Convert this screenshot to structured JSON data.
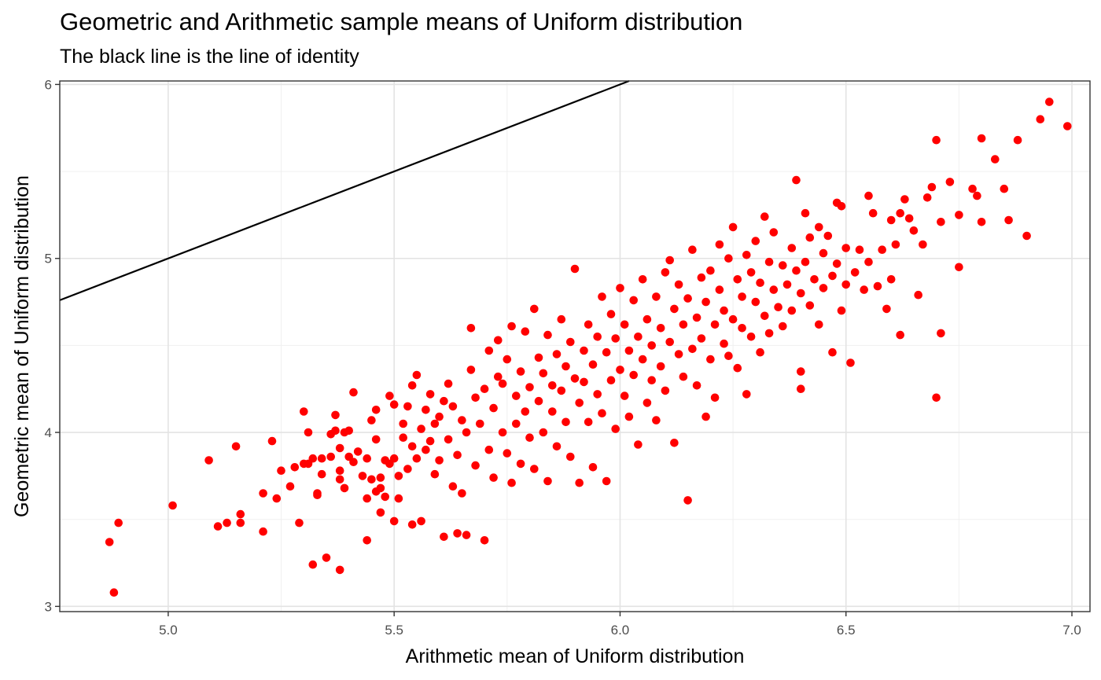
{
  "chart_data": {
    "type": "scatter",
    "title": "Geometric and Arithmetic sample means of Uniform distribution",
    "subtitle": "The black line is the line of identity",
    "xlabel": "Arithmetic mean of Uniform distribution",
    "ylabel": "Geometric mean of Uniform distribution",
    "xlim": [
      4.76,
      7.04
    ],
    "ylim": [
      2.97,
      6.02
    ],
    "x_ticks": [
      5.0,
      5.5,
      6.0,
      6.5,
      7.0
    ],
    "x_tick_labels": [
      "5.0",
      "5.5",
      "6.0",
      "6.5",
      "7.0"
    ],
    "y_ticks": [
      3,
      4,
      5,
      6
    ],
    "y_tick_labels": [
      "3",
      "4",
      "5",
      "6"
    ],
    "grid": true,
    "point_color": "#ff0000",
    "reference_line": {
      "type": "identity",
      "slope": 1,
      "intercept": 0,
      "color": "#000000"
    },
    "points": [
      [
        4.87,
        3.37
      ],
      [
        4.88,
        3.08
      ],
      [
        4.89,
        3.48
      ],
      [
        5.01,
        3.58
      ],
      [
        5.09,
        3.84
      ],
      [
        5.11,
        3.46
      ],
      [
        5.13,
        3.48
      ],
      [
        5.15,
        3.92
      ],
      [
        5.16,
        3.53
      ],
      [
        5.16,
        3.48
      ],
      [
        5.21,
        3.65
      ],
      [
        5.21,
        3.43
      ],
      [
        5.23,
        3.95
      ],
      [
        5.24,
        3.62
      ],
      [
        5.25,
        3.78
      ],
      [
        5.27,
        3.69
      ],
      [
        5.28,
        3.8
      ],
      [
        5.29,
        3.48
      ],
      [
        5.3,
        3.82
      ],
      [
        5.3,
        4.12
      ],
      [
        5.31,
        3.82
      ],
      [
        5.31,
        4.0
      ],
      [
        5.32,
        3.85
      ],
      [
        5.32,
        3.24
      ],
      [
        5.33,
        3.65
      ],
      [
        5.33,
        3.64
      ],
      [
        5.34,
        3.76
      ],
      [
        5.34,
        3.85
      ],
      [
        5.35,
        3.28
      ],
      [
        5.36,
        3.86
      ],
      [
        5.36,
        3.99
      ],
      [
        5.37,
        4.01
      ],
      [
        5.37,
        4.1
      ],
      [
        5.38,
        3.78
      ],
      [
        5.38,
        3.73
      ],
      [
        5.38,
        3.91
      ],
      [
        5.38,
        3.21
      ],
      [
        5.39,
        3.68
      ],
      [
        5.39,
        4.0
      ],
      [
        5.4,
        3.86
      ],
      [
        5.4,
        4.01
      ],
      [
        5.41,
        4.23
      ],
      [
        5.41,
        3.83
      ],
      [
        5.42,
        3.89
      ],
      [
        5.43,
        3.75
      ],
      [
        5.44,
        3.85
      ],
      [
        5.44,
        3.62
      ],
      [
        5.44,
        3.38
      ],
      [
        5.45,
        3.73
      ],
      [
        5.45,
        4.07
      ],
      [
        5.46,
        3.66
      ],
      [
        5.46,
        3.96
      ],
      [
        5.46,
        4.13
      ],
      [
        5.47,
        3.54
      ],
      [
        5.47,
        3.74
      ],
      [
        5.47,
        3.68
      ],
      [
        5.48,
        3.84
      ],
      [
        5.48,
        3.63
      ],
      [
        5.49,
        3.82
      ],
      [
        5.49,
        4.21
      ],
      [
        5.5,
        3.49
      ],
      [
        5.5,
        3.85
      ],
      [
        5.5,
        4.16
      ],
      [
        5.51,
        3.75
      ],
      [
        5.51,
        3.62
      ],
      [
        5.52,
        3.97
      ],
      [
        5.52,
        4.05
      ],
      [
        5.53,
        4.15
      ],
      [
        5.53,
        3.79
      ],
      [
        5.54,
        3.92
      ],
      [
        5.54,
        4.27
      ],
      [
        5.54,
        3.47
      ],
      [
        5.55,
        4.33
      ],
      [
        5.55,
        3.85
      ],
      [
        5.56,
        3.49
      ],
      [
        5.56,
        4.02
      ],
      [
        5.57,
        3.9
      ],
      [
        5.57,
        4.13
      ],
      [
        5.58,
        3.95
      ],
      [
        5.58,
        4.22
      ],
      [
        5.59,
        3.76
      ],
      [
        5.59,
        4.05
      ],
      [
        5.6,
        3.84
      ],
      [
        5.6,
        4.09
      ],
      [
        5.61,
        3.4
      ],
      [
        5.61,
        4.18
      ],
      [
        5.62,
        4.28
      ],
      [
        5.62,
        3.96
      ],
      [
        5.63,
        4.15
      ],
      [
        5.63,
        3.69
      ],
      [
        5.64,
        3.42
      ],
      [
        5.64,
        3.87
      ],
      [
        5.65,
        4.07
      ],
      [
        5.65,
        3.65
      ],
      [
        5.66,
        3.41
      ],
      [
        5.66,
        4.0
      ],
      [
        5.67,
        4.36
      ],
      [
        5.67,
        4.6
      ],
      [
        5.68,
        4.2
      ],
      [
        5.68,
        3.81
      ],
      [
        5.69,
        4.05
      ],
      [
        5.7,
        3.38
      ],
      [
        5.7,
        4.25
      ],
      [
        5.71,
        4.47
      ],
      [
        5.71,
        3.9
      ],
      [
        5.72,
        4.14
      ],
      [
        5.72,
        3.74
      ],
      [
        5.73,
        4.32
      ],
      [
        5.73,
        4.53
      ],
      [
        5.74,
        4.0
      ],
      [
        5.74,
        4.28
      ],
      [
        5.75,
        3.88
      ],
      [
        5.75,
        4.42
      ],
      [
        5.76,
        4.61
      ],
      [
        5.76,
        3.71
      ],
      [
        5.77,
        4.21
      ],
      [
        5.77,
        4.05
      ],
      [
        5.78,
        4.35
      ],
      [
        5.78,
        3.82
      ],
      [
        5.79,
        4.58
      ],
      [
        5.79,
        4.12
      ],
      [
        5.8,
        3.97
      ],
      [
        5.8,
        4.26
      ],
      [
        5.81,
        4.71
      ],
      [
        5.81,
        3.79
      ],
      [
        5.82,
        4.43
      ],
      [
        5.82,
        4.18
      ],
      [
        5.83,
        4.0
      ],
      [
        5.83,
        4.34
      ],
      [
        5.84,
        4.56
      ],
      [
        5.84,
        3.72
      ],
      [
        5.85,
        4.27
      ],
      [
        5.85,
        4.12
      ],
      [
        5.86,
        4.45
      ],
      [
        5.86,
        3.92
      ],
      [
        5.87,
        4.65
      ],
      [
        5.87,
        4.24
      ],
      [
        5.88,
        4.38
      ],
      [
        5.88,
        4.06
      ],
      [
        5.89,
        4.52
      ],
      [
        5.89,
        3.86
      ],
      [
        5.9,
        4.31
      ],
      [
        5.9,
        4.94
      ],
      [
        5.91,
        4.17
      ],
      [
        5.91,
        3.71
      ],
      [
        5.92,
        4.47
      ],
      [
        5.92,
        4.29
      ],
      [
        5.93,
        4.62
      ],
      [
        5.93,
        4.06
      ],
      [
        5.94,
        4.39
      ],
      [
        5.94,
        3.8
      ],
      [
        5.95,
        4.55
      ],
      [
        5.95,
        4.22
      ],
      [
        5.96,
        4.78
      ],
      [
        5.96,
        4.11
      ],
      [
        5.97,
        3.72
      ],
      [
        5.97,
        4.46
      ],
      [
        5.98,
        4.3
      ],
      [
        5.98,
        4.68
      ],
      [
        5.99,
        4.02
      ],
      [
        5.99,
        4.54
      ],
      [
        6.0,
        4.83
      ],
      [
        6.0,
        4.36
      ],
      [
        6.01,
        4.21
      ],
      [
        6.01,
        4.62
      ],
      [
        6.02,
        4.47
      ],
      [
        6.02,
        4.09
      ],
      [
        6.03,
        4.76
      ],
      [
        6.03,
        4.33
      ],
      [
        6.04,
        3.93
      ],
      [
        6.04,
        4.55
      ],
      [
        6.05,
        4.88
      ],
      [
        6.05,
        4.42
      ],
      [
        6.06,
        4.17
      ],
      [
        6.06,
        4.65
      ],
      [
        6.07,
        4.3
      ],
      [
        6.07,
        4.5
      ],
      [
        6.08,
        4.78
      ],
      [
        6.08,
        4.07
      ],
      [
        6.09,
        4.6
      ],
      [
        6.09,
        4.38
      ],
      [
        6.1,
        4.92
      ],
      [
        6.1,
        4.24
      ],
      [
        6.11,
        4.99
      ],
      [
        6.11,
        4.52
      ],
      [
        6.12,
        4.71
      ],
      [
        6.12,
        3.94
      ],
      [
        6.13,
        4.45
      ],
      [
        6.13,
        4.85
      ],
      [
        6.14,
        4.32
      ],
      [
        6.14,
        4.62
      ],
      [
        6.15,
        3.61
      ],
      [
        6.15,
        4.77
      ],
      [
        6.16,
        4.48
      ],
      [
        6.16,
        5.05
      ],
      [
        6.17,
        4.27
      ],
      [
        6.17,
        4.66
      ],
      [
        6.18,
        4.89
      ],
      [
        6.18,
        4.54
      ],
      [
        6.19,
        4.09
      ],
      [
        6.19,
        4.75
      ],
      [
        6.2,
        4.42
      ],
      [
        6.2,
        4.93
      ],
      [
        6.21,
        4.62
      ],
      [
        6.21,
        4.2
      ],
      [
        6.22,
        5.08
      ],
      [
        6.22,
        4.82
      ],
      [
        6.23,
        4.51
      ],
      [
        6.23,
        4.7
      ],
      [
        6.24,
        4.44
      ],
      [
        6.24,
        5.0
      ],
      [
        6.25,
        4.65
      ],
      [
        6.25,
        5.18
      ],
      [
        6.26,
        4.88
      ],
      [
        6.26,
        4.37
      ],
      [
        6.27,
        4.6
      ],
      [
        6.27,
        4.78
      ],
      [
        6.28,
        5.02
      ],
      [
        6.28,
        4.22
      ],
      [
        6.29,
        4.92
      ],
      [
        6.29,
        4.55
      ],
      [
        6.3,
        4.75
      ],
      [
        6.3,
        5.1
      ],
      [
        6.31,
        4.46
      ],
      [
        6.31,
        4.86
      ],
      [
        6.32,
        4.67
      ],
      [
        6.32,
        5.24
      ],
      [
        6.33,
        4.98
      ],
      [
        6.33,
        4.57
      ],
      [
        6.34,
        4.82
      ],
      [
        6.34,
        5.15
      ],
      [
        6.35,
        4.72
      ],
      [
        6.36,
        4.96
      ],
      [
        6.36,
        4.61
      ],
      [
        6.37,
        4.85
      ],
      [
        6.38,
        5.06
      ],
      [
        6.38,
        4.7
      ],
      [
        6.39,
        5.45
      ],
      [
        6.39,
        4.93
      ],
      [
        6.4,
        4.35
      ],
      [
        6.4,
        4.8
      ],
      [
        6.4,
        4.25
      ],
      [
        6.41,
        5.26
      ],
      [
        6.41,
        4.98
      ],
      [
        6.42,
        4.73
      ],
      [
        6.42,
        5.12
      ],
      [
        6.43,
        4.88
      ],
      [
        6.44,
        5.18
      ],
      [
        6.44,
        4.62
      ],
      [
        6.45,
        5.03
      ],
      [
        6.45,
        4.83
      ],
      [
        6.46,
        5.13
      ],
      [
        6.47,
        4.9
      ],
      [
        6.47,
        4.46
      ],
      [
        6.48,
        5.32
      ],
      [
        6.48,
        4.97
      ],
      [
        6.49,
        5.3
      ],
      [
        6.49,
        4.7
      ],
      [
        6.5,
        5.06
      ],
      [
        6.5,
        4.85
      ],
      [
        6.51,
        4.4
      ],
      [
        6.52,
        4.92
      ],
      [
        6.53,
        5.05
      ],
      [
        6.54,
        4.82
      ],
      [
        6.55,
        5.36
      ],
      [
        6.55,
        4.98
      ],
      [
        6.56,
        5.26
      ],
      [
        6.57,
        4.84
      ],
      [
        6.58,
        5.05
      ],
      [
        6.59,
        4.71
      ],
      [
        6.6,
        5.22
      ],
      [
        6.6,
        4.88
      ],
      [
        6.61,
        5.08
      ],
      [
        6.62,
        4.56
      ],
      [
        6.62,
        5.26
      ],
      [
        6.63,
        5.34
      ],
      [
        6.64,
        5.23
      ],
      [
        6.65,
        5.16
      ],
      [
        6.66,
        4.79
      ],
      [
        6.67,
        5.08
      ],
      [
        6.68,
        5.35
      ],
      [
        6.69,
        5.41
      ],
      [
        6.7,
        4.2
      ],
      [
        6.7,
        5.68
      ],
      [
        6.71,
        5.21
      ],
      [
        6.71,
        4.57
      ],
      [
        6.73,
        5.44
      ],
      [
        6.75,
        5.25
      ],
      [
        6.75,
        4.95
      ],
      [
        6.78,
        5.4
      ],
      [
        6.79,
        5.36
      ],
      [
        6.8,
        5.21
      ],
      [
        6.8,
        5.69
      ],
      [
        6.83,
        5.57
      ],
      [
        6.85,
        5.4
      ],
      [
        6.86,
        5.22
      ],
      [
        6.88,
        5.68
      ],
      [
        6.9,
        5.13
      ],
      [
        6.93,
        5.8
      ],
      [
        6.95,
        5.9
      ],
      [
        6.99,
        5.76
      ]
    ]
  }
}
